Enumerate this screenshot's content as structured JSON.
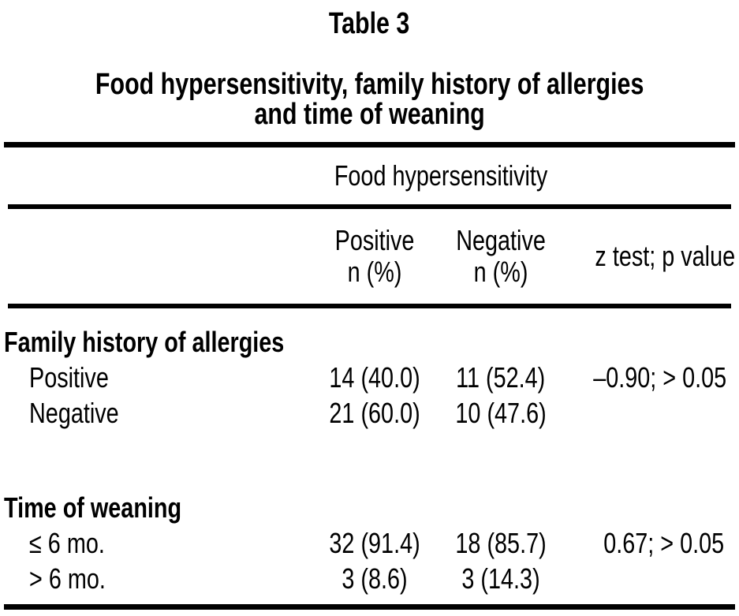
{
  "caption": {
    "label": "Table 3",
    "title_line1": "Food hypersensitivity, family history of allergies",
    "title_line2": "and time of weaning"
  },
  "header": {
    "span": "Food hypersensitivity",
    "positive_line1": "Positive",
    "positive_line2": "n (%)",
    "negative_line1": "Negative",
    "negative_line2": "n (%)",
    "ztest": "z test; p value"
  },
  "sections": [
    {
      "label": "Family history of allergies",
      "rows": [
        {
          "label": "Positive",
          "positive": "14 (40.0)",
          "negative": "11 (52.4)",
          "ztest": "–0.90; > 0.05"
        },
        {
          "label": "Negative",
          "positive": "21 (60.0)",
          "negative": "10 (47.6)",
          "ztest": ""
        }
      ]
    },
    {
      "label": "Time of weaning",
      "rows": [
        {
          "label": "≤ 6 mo.",
          "positive": "32 (91.4)",
          "negative": "18 (85.7)",
          "ztest": "0.67; > 0.05"
        },
        {
          "label": "> 6 mo.",
          "positive": "3 (8.6)",
          "negative": "3 (14.3)",
          "ztest": ""
        }
      ]
    }
  ]
}
